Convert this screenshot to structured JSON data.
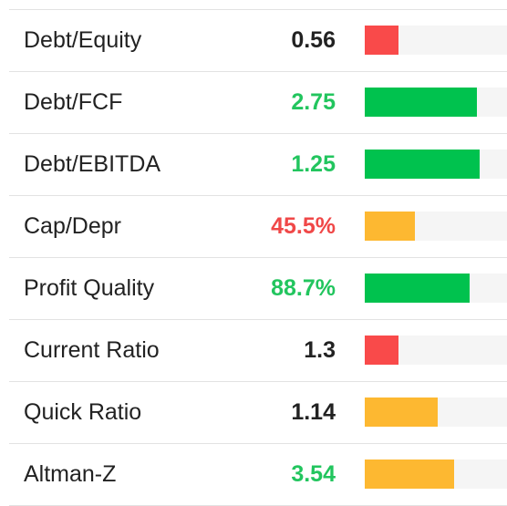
{
  "metrics": [
    {
      "label": "Debt/Equity",
      "value": "0.56",
      "value_tone": "neutral",
      "bar_level": 0.24,
      "bar_color": "red"
    },
    {
      "label": "Debt/FCF",
      "value": "2.75",
      "value_tone": "good",
      "bar_level": 0.79,
      "bar_color": "green"
    },
    {
      "label": "Debt/EBITDA",
      "value": "1.25",
      "value_tone": "good",
      "bar_level": 0.81,
      "bar_color": "green"
    },
    {
      "label": "Cap/Depr",
      "value": "45.5%",
      "value_tone": "bad",
      "bar_level": 0.35,
      "bar_color": "yellow"
    },
    {
      "label": "Profit Quality",
      "value": "88.7%",
      "value_tone": "good",
      "bar_level": 0.74,
      "bar_color": "green"
    },
    {
      "label": "Current Ratio",
      "value": "1.3",
      "value_tone": "neutral",
      "bar_level": 0.24,
      "bar_color": "red"
    },
    {
      "label": "Quick Ratio",
      "value": "1.14",
      "value_tone": "neutral",
      "bar_level": 0.51,
      "bar_color": "yellow"
    },
    {
      "label": "Altman-Z",
      "value": "3.54",
      "value_tone": "good",
      "bar_level": 0.63,
      "bar_color": "yellow"
    }
  ],
  "colors": {
    "good": "#22c55e",
    "bad": "#f04848",
    "neutral": "#222222",
    "bar_red": "#f94a4a",
    "bar_green": "#00c24e",
    "bar_yellow": "#fdb831",
    "track": "#f5f5f5"
  }
}
